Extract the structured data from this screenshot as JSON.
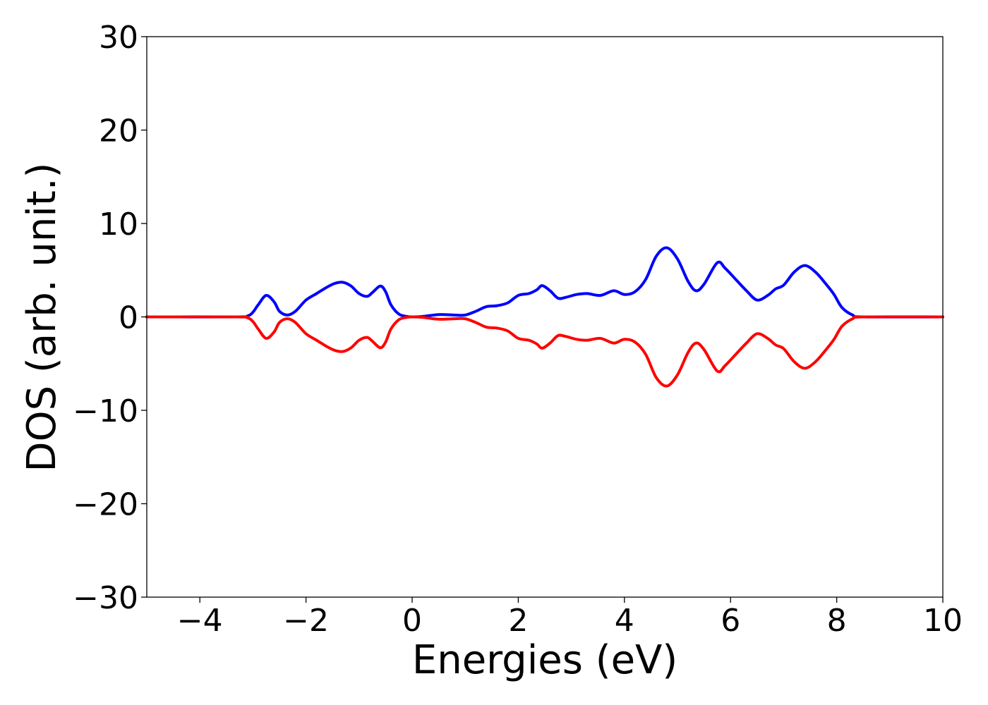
{
  "chart_data": {
    "type": "line",
    "title": "",
    "xlabel": "Energies (eV)",
    "ylabel": "DOS (arb. unit.)",
    "xlim": [
      -5,
      10
    ],
    "ylim": [
      -30,
      30
    ],
    "x_ticks": [
      -4,
      -2,
      0,
      2,
      4,
      6,
      8,
      10
    ],
    "x_tick_labels": [
      "−4",
      "−2",
      "0",
      "2",
      "4",
      "6",
      "8",
      "10"
    ],
    "y_ticks": [
      -30,
      -20,
      -10,
      0,
      10,
      20,
      30
    ],
    "y_tick_labels": [
      "−30",
      "−20",
      "−10",
      "0",
      "10",
      "20",
      "30"
    ],
    "grid": false,
    "legend": "none",
    "series": [
      {
        "color": "#0000ff",
        "points": [
          [
            -5,
            0
          ],
          [
            -3.3,
            0
          ],
          [
            -3.1,
            0.1
          ],
          [
            -3.0,
            0.5
          ],
          [
            -2.9,
            1.3
          ],
          [
            -2.75,
            2.3
          ],
          [
            -2.6,
            1.6
          ],
          [
            -2.5,
            0.6
          ],
          [
            -2.35,
            0.2
          ],
          [
            -2.2,
            0.6
          ],
          [
            -2.0,
            1.8
          ],
          [
            -1.8,
            2.5
          ],
          [
            -1.6,
            3.2
          ],
          [
            -1.45,
            3.6
          ],
          [
            -1.3,
            3.7
          ],
          [
            -1.15,
            3.3
          ],
          [
            -1.0,
            2.5
          ],
          [
            -0.85,
            2.2
          ],
          [
            -0.75,
            2.6
          ],
          [
            -0.6,
            3.3
          ],
          [
            -0.5,
            2.7
          ],
          [
            -0.4,
            1.3
          ],
          [
            -0.25,
            0.3
          ],
          [
            -0.1,
            0.05
          ],
          [
            0,
            0
          ],
          [
            0.2,
            0.05
          ],
          [
            0.5,
            0.25
          ],
          [
            0.8,
            0.2
          ],
          [
            1.0,
            0.2
          ],
          [
            1.2,
            0.6
          ],
          [
            1.4,
            1.1
          ],
          [
            1.6,
            1.2
          ],
          [
            1.8,
            1.5
          ],
          [
            2.0,
            2.3
          ],
          [
            2.2,
            2.5
          ],
          [
            2.35,
            2.9
          ],
          [
            2.45,
            3.35
          ],
          [
            2.6,
            2.8
          ],
          [
            2.75,
            2.0
          ],
          [
            2.9,
            2.1
          ],
          [
            3.1,
            2.4
          ],
          [
            3.3,
            2.5
          ],
          [
            3.55,
            2.3
          ],
          [
            3.8,
            2.8
          ],
          [
            4.0,
            2.4
          ],
          [
            4.2,
            2.7
          ],
          [
            4.4,
            4.0
          ],
          [
            4.6,
            6.5
          ],
          [
            4.8,
            7.4
          ],
          [
            5.0,
            6.2
          ],
          [
            5.2,
            3.8
          ],
          [
            5.35,
            2.8
          ],
          [
            5.5,
            3.5
          ],
          [
            5.75,
            5.8
          ],
          [
            5.9,
            5.2
          ],
          [
            6.1,
            4.0
          ],
          [
            6.3,
            2.8
          ],
          [
            6.5,
            1.8
          ],
          [
            6.7,
            2.3
          ],
          [
            6.85,
            3.0
          ],
          [
            7.0,
            3.4
          ],
          [
            7.2,
            4.8
          ],
          [
            7.4,
            5.5
          ],
          [
            7.6,
            4.8
          ],
          [
            7.8,
            3.5
          ],
          [
            7.95,
            2.4
          ],
          [
            8.1,
            1.0
          ],
          [
            8.3,
            0.2
          ],
          [
            8.5,
            0
          ],
          [
            10,
            0
          ]
        ]
      },
      {
        "color": "#ff0000",
        "points": [
          [
            -5,
            0
          ],
          [
            -3.3,
            0
          ],
          [
            -3.1,
            -0.1
          ],
          [
            -3.0,
            -0.5
          ],
          [
            -2.9,
            -1.3
          ],
          [
            -2.75,
            -2.3
          ],
          [
            -2.6,
            -1.6
          ],
          [
            -2.5,
            -0.6
          ],
          [
            -2.35,
            -0.2
          ],
          [
            -2.2,
            -0.6
          ],
          [
            -2.0,
            -1.8
          ],
          [
            -1.8,
            -2.5
          ],
          [
            -1.6,
            -3.2
          ],
          [
            -1.45,
            -3.6
          ],
          [
            -1.3,
            -3.7
          ],
          [
            -1.15,
            -3.3
          ],
          [
            -1.0,
            -2.5
          ],
          [
            -0.85,
            -2.2
          ],
          [
            -0.75,
            -2.6
          ],
          [
            -0.6,
            -3.3
          ],
          [
            -0.5,
            -2.7
          ],
          [
            -0.4,
            -1.3
          ],
          [
            -0.25,
            -0.3
          ],
          [
            -0.1,
            -0.05
          ],
          [
            0,
            0
          ],
          [
            0.2,
            -0.05
          ],
          [
            0.5,
            -0.25
          ],
          [
            0.8,
            -0.2
          ],
          [
            1.0,
            -0.2
          ],
          [
            1.2,
            -0.6
          ],
          [
            1.4,
            -1.1
          ],
          [
            1.6,
            -1.2
          ],
          [
            1.8,
            -1.5
          ],
          [
            2.0,
            -2.3
          ],
          [
            2.2,
            -2.5
          ],
          [
            2.35,
            -2.9
          ],
          [
            2.45,
            -3.35
          ],
          [
            2.6,
            -2.8
          ],
          [
            2.75,
            -2.0
          ],
          [
            2.9,
            -2.1
          ],
          [
            3.1,
            -2.4
          ],
          [
            3.3,
            -2.5
          ],
          [
            3.55,
            -2.3
          ],
          [
            3.8,
            -2.8
          ],
          [
            4.0,
            -2.4
          ],
          [
            4.2,
            -2.7
          ],
          [
            4.4,
            -4.0
          ],
          [
            4.6,
            -6.5
          ],
          [
            4.8,
            -7.4
          ],
          [
            5.0,
            -6.2
          ],
          [
            5.2,
            -3.8
          ],
          [
            5.35,
            -2.8
          ],
          [
            5.5,
            -3.5
          ],
          [
            5.75,
            -5.8
          ],
          [
            5.9,
            -5.2
          ],
          [
            6.1,
            -4.0
          ],
          [
            6.3,
            -2.8
          ],
          [
            6.5,
            -1.8
          ],
          [
            6.7,
            -2.3
          ],
          [
            6.85,
            -3.0
          ],
          [
            7.0,
            -3.4
          ],
          [
            7.2,
            -4.8
          ],
          [
            7.4,
            -5.5
          ],
          [
            7.6,
            -4.8
          ],
          [
            7.8,
            -3.5
          ],
          [
            7.95,
            -2.4
          ],
          [
            8.1,
            -1.0
          ],
          [
            8.3,
            -0.2
          ],
          [
            8.5,
            0
          ],
          [
            10,
            0
          ]
        ]
      }
    ]
  }
}
